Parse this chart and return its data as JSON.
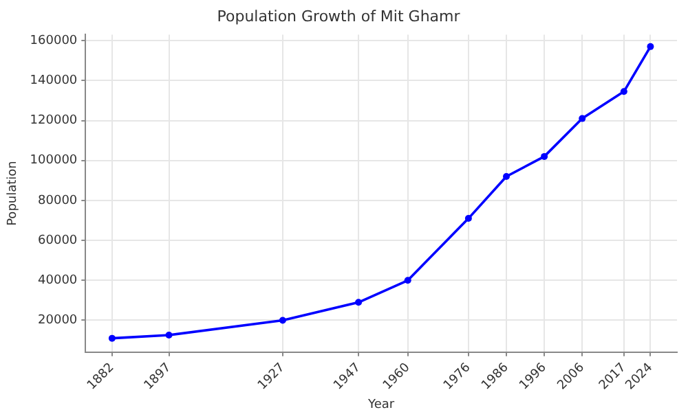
{
  "chart_data": {
    "type": "line",
    "title": "Population Growth of Mit Ghamr",
    "xlabel": "Year",
    "ylabel": "Population",
    "x": [
      1882,
      1897,
      1927,
      1947,
      1960,
      1976,
      1986,
      1996,
      2006,
      2017,
      2024
    ],
    "series": [
      {
        "color": "#0000ff",
        "values": [
          11000,
          12600,
          20000,
          29000,
          40000,
          71000,
          92000,
          102000,
          121000,
          134500,
          157000
        ]
      }
    ],
    "xlim": [
      1875,
      2031
    ],
    "xticks": [
      1882,
      1897,
      1927,
      1947,
      1960,
      1976,
      1986,
      1996,
      2006,
      2017,
      2024
    ],
    "ylim": [
      4100,
      163000
    ],
    "yticks": [
      20000,
      40000,
      60000,
      80000,
      100000,
      120000,
      140000,
      160000
    ],
    "grid": true,
    "legend": false,
    "marker": "circle",
    "line_style": "solid"
  }
}
